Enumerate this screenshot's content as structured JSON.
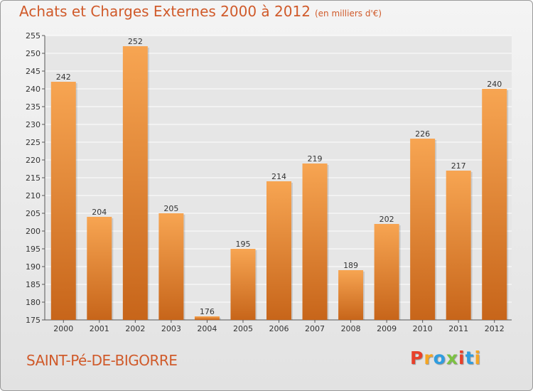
{
  "header": {
    "title": "Achats et Charges Externes 2000 à 2012",
    "unit": "(en milliers d'€)"
  },
  "footer": {
    "commune": "SAINT-Pé-DE-BIGORRE",
    "logo": "Proxiti",
    "logo_colors": [
      "#e8402a",
      "#f5a623",
      "#2f9de0",
      "#7cc242",
      "#e8402a",
      "#2f9de0",
      "#f5a623"
    ]
  },
  "chart_data": {
    "type": "bar",
    "title": "Achats et Charges Externes 2000 à 2012",
    "subtitle": "(en milliers d'€)",
    "categories": [
      "2000",
      "2001",
      "2002",
      "2003",
      "2004",
      "2005",
      "2006",
      "2007",
      "2008",
      "2009",
      "2010",
      "2011",
      "2012"
    ],
    "values": [
      242,
      204,
      252,
      205,
      176,
      195,
      214,
      219,
      189,
      202,
      226,
      217,
      240
    ],
    "ylim": [
      175,
      255
    ],
    "yticks": [
      175,
      180,
      185,
      190,
      195,
      200,
      205,
      210,
      215,
      220,
      225,
      230,
      235,
      240,
      245,
      250,
      255
    ],
    "grid": true,
    "bar_color_top": "#f7a552",
    "bar_color_bottom": "#c7651a"
  }
}
